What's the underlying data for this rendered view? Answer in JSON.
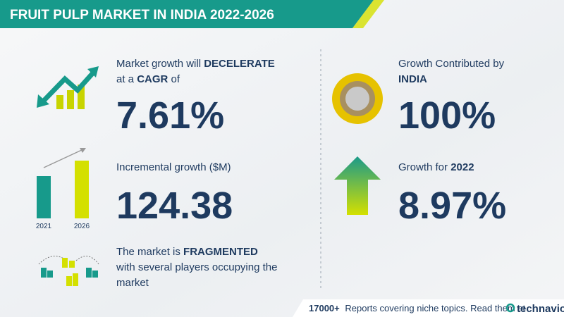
{
  "header": {
    "title": "FRUIT PULP MARKET IN INDIA 2022-2026"
  },
  "panels": [
    {
      "lines": [
        [
          {
            "text": "Market growth will ",
            "bold": false
          },
          {
            "text": "DECELERATE",
            "bold": true
          }
        ],
        [
          {
            "text": "at a ",
            "bold": false
          },
          {
            "text": "CAGR",
            "bold": true
          },
          {
            "text": "  of",
            "bold": false
          }
        ]
      ],
      "value": "7.61%"
    },
    {
      "lines": [
        [
          {
            "text": "Incremental growth ($M)",
            "bold": false
          }
        ]
      ],
      "value": "124.38"
    },
    {
      "lines": [
        [
          {
            "text": "The market is ",
            "bold": false
          },
          {
            "text": "FRAGMENTED",
            "bold": true
          }
        ],
        [
          {
            "text": "with several players occupying the",
            "bold": false
          }
        ],
        [
          {
            "text": "market",
            "bold": false
          }
        ]
      ]
    },
    {
      "lines": [
        [
          {
            "text": "Growth Contributed by",
            "bold": false
          }
        ],
        [
          {
            "text": "INDIA",
            "bold": true
          }
        ]
      ],
      "value": "100%"
    },
    {
      "lines": [
        [
          {
            "text": "Growth for  ",
            "bold": false
          },
          {
            "text": "2022",
            "bold": true
          }
        ]
      ],
      "value": "8.97%"
    }
  ],
  "icon_labels": [
    "2021",
    "2026"
  ],
  "footer": {
    "count": "17000+",
    "text": "Reports covering niche topics. Read them at",
    "brand": "technavio"
  }
}
